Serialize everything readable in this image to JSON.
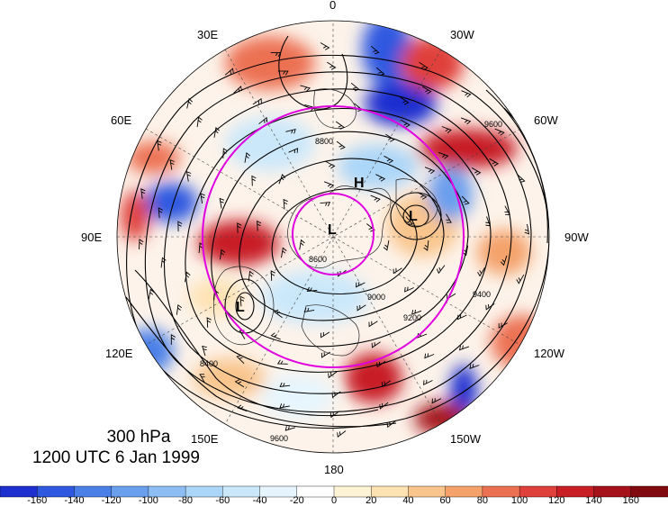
{
  "map": {
    "level": "300 hPa",
    "valid_time": "1200 UTC 6 Jan 1999",
    "longitude_labels": [
      {
        "id": "lon-0",
        "text": "0"
      },
      {
        "id": "lon-30w",
        "text": "30W"
      },
      {
        "id": "lon-60w",
        "text": "60W"
      },
      {
        "id": "lon-90w",
        "text": "90W"
      },
      {
        "id": "lon-120w",
        "text": "120W"
      },
      {
        "id": "lon-150w",
        "text": "150W"
      },
      {
        "id": "lon-180",
        "text": "180"
      },
      {
        "id": "lon-150e",
        "text": "150E"
      },
      {
        "id": "lon-120e",
        "text": "120E"
      },
      {
        "id": "lon-90e",
        "text": "90E"
      },
      {
        "id": "lon-60e",
        "text": "60E"
      },
      {
        "id": "lon-30e",
        "text": "30E"
      }
    ],
    "pressure_centers": [
      "L",
      "H",
      "L",
      "L"
    ],
    "contour_labels": [
      "8400",
      "8600",
      "8800",
      "9000",
      "9200",
      "9400",
      "9600"
    ]
  },
  "colorbar": {
    "ticks": [
      "-160",
      "-140",
      "-120",
      "-100",
      "-80",
      "-60",
      "-40",
      "-20",
      "0",
      "20",
      "40",
      "60",
      "80",
      "100",
      "120",
      "140",
      "160"
    ],
    "colors": [
      "#1e2fd0",
      "#2f58e0",
      "#4a7fe8",
      "#6a9fee",
      "#8cbdf3",
      "#acd6f8",
      "#cbe8fb",
      "#e6f5fd",
      "#ffffff",
      "#fff3d6",
      "#fde2b2",
      "#f9c58c",
      "#f4a26a",
      "#ec7152",
      "#e0403a",
      "#c81f26",
      "#a5121a",
      "#800a10"
    ]
  },
  "colors": {
    "ring": "#e000e0",
    "contour": "#000000"
  }
}
